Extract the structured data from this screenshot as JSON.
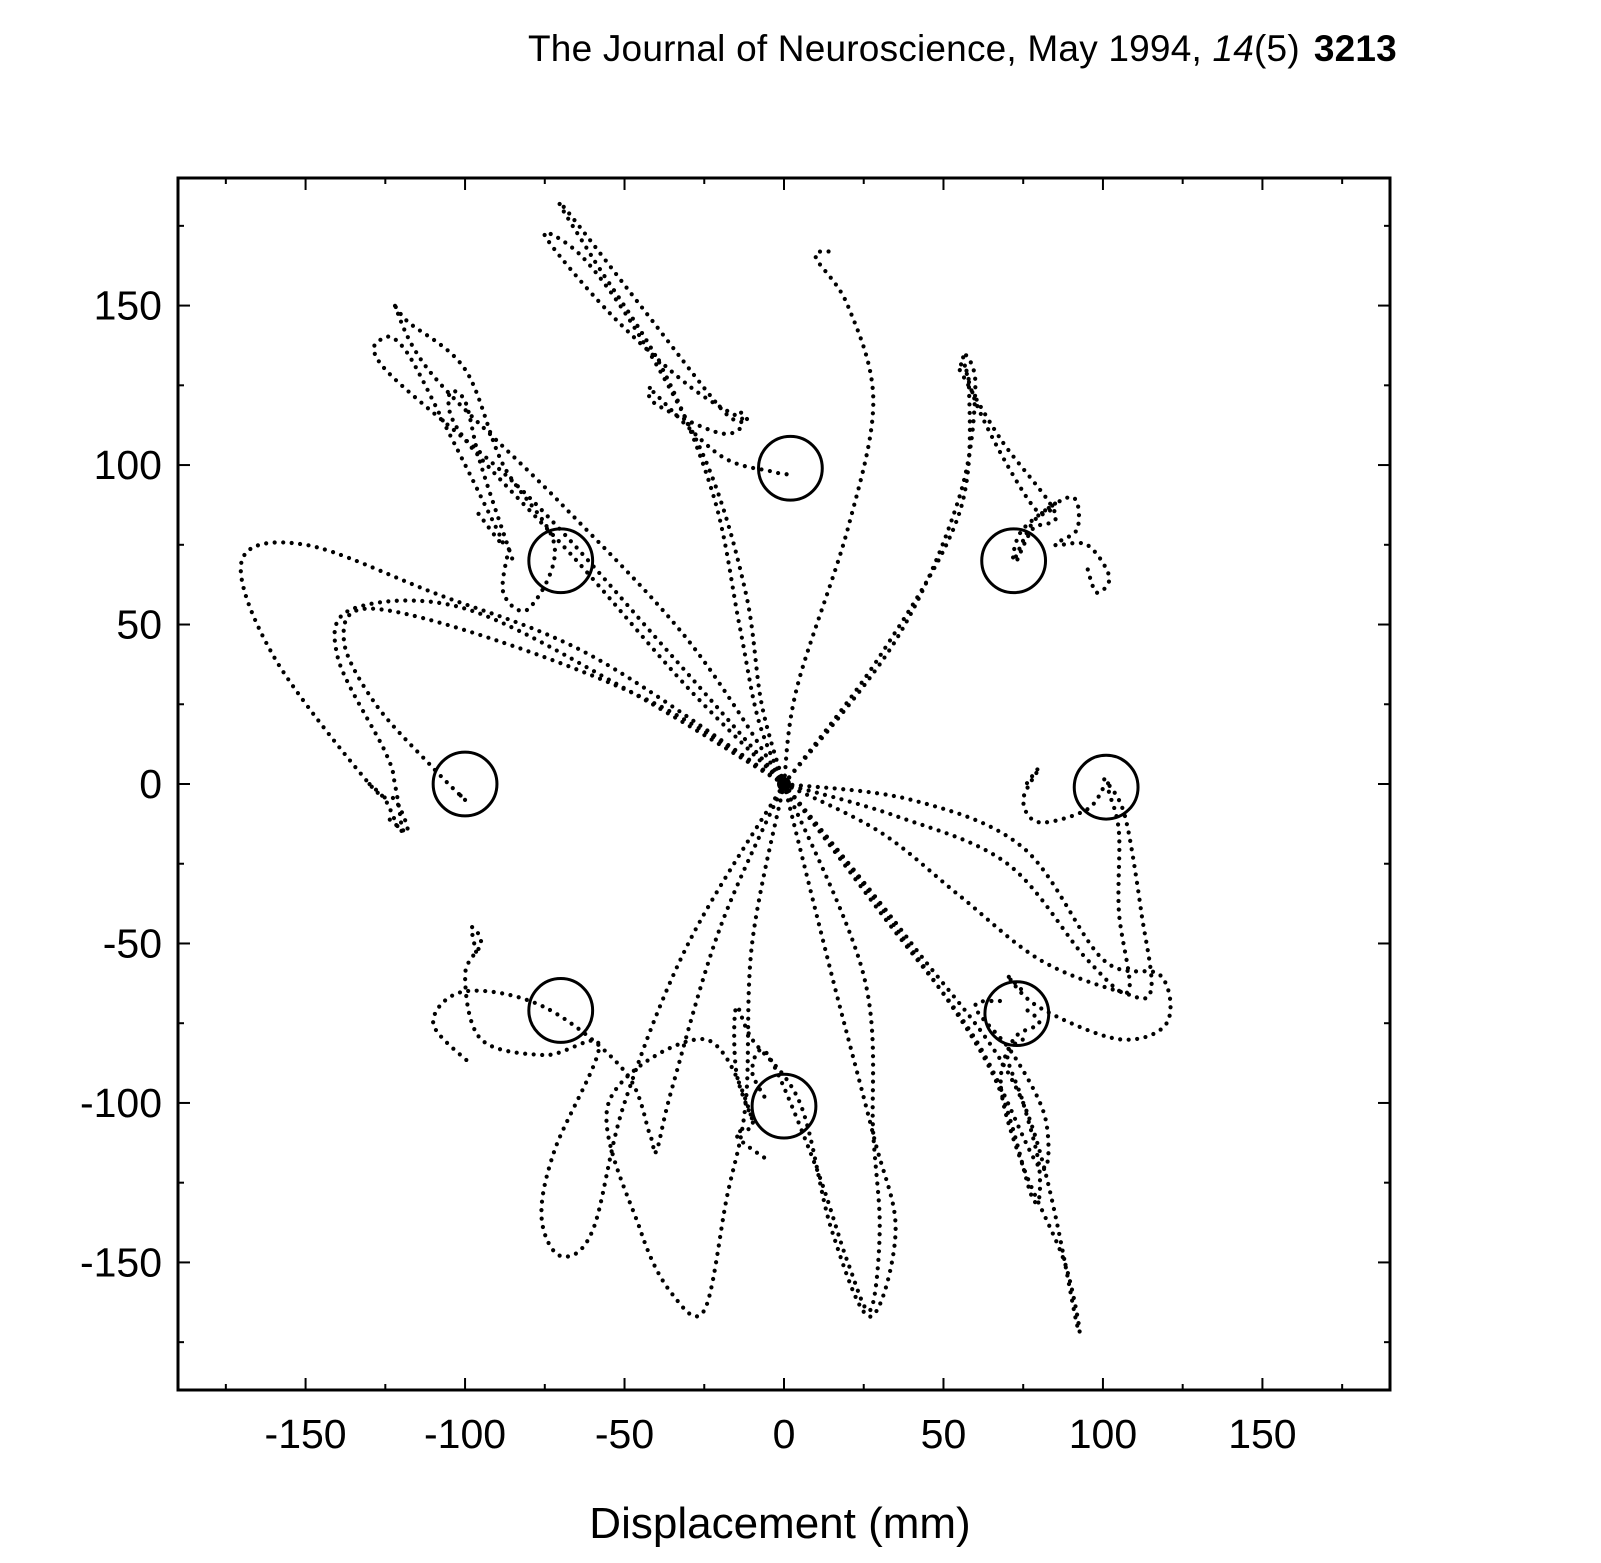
{
  "header": {
    "journal": "The Journal of Neuroscience, May 1994, ",
    "volume": "14",
    "issue": "(5)",
    "page": "3213"
  },
  "chart_data": {
    "type": "scatter",
    "title": "",
    "xlabel": "Displacement (mm)",
    "ylabel": "",
    "xlim": [
      -190,
      190
    ],
    "ylim": [
      -190,
      190
    ],
    "x_ticks": [
      -150,
      -100,
      -50,
      0,
      50,
      100,
      150
    ],
    "y_ticks": [
      150,
      100,
      50,
      0,
      -50,
      -100,
      -150
    ],
    "grid": false,
    "legend": "none",
    "origin": [
      0,
      0
    ],
    "targets": [
      {
        "x": 2,
        "y": 99,
        "r": 10
      },
      {
        "x": -70,
        "y": 70,
        "r": 10
      },
      {
        "x": 72,
        "y": 70,
        "r": 10
      },
      {
        "x": -100,
        "y": 0,
        "r": 10
      },
      {
        "x": 101,
        "y": -1,
        "r": 10
      },
      {
        "x": -70,
        "y": -71,
        "r": 10
      },
      {
        "x": 73,
        "y": -72,
        "r": 10
      },
      {
        "x": 0,
        "y": -101,
        "r": 10
      }
    ],
    "series": [
      {
        "values": [
          [
            0,
            0
          ],
          [
            -8,
            20
          ],
          [
            -14,
            50
          ],
          [
            -22,
            90
          ],
          [
            -38,
            130
          ],
          [
            -60,
            165
          ],
          [
            -70,
            182
          ],
          [
            -45,
            150
          ],
          [
            -20,
            118
          ],
          [
            -13,
            113
          ],
          [
            -20,
            110
          ],
          [
            -40,
            119
          ],
          [
            -42,
            124
          ],
          [
            -40,
            122
          ],
          [
            -20,
            103
          ],
          [
            -4,
            98
          ],
          [
            2,
            97
          ]
        ]
      },
      {
        "values": [
          [
            0,
            0
          ],
          [
            -7,
            25
          ],
          [
            -12,
            60
          ],
          [
            -24,
            100
          ],
          [
            -45,
            140
          ],
          [
            -63,
            165
          ],
          [
            -75,
            172
          ],
          [
            -55,
            148
          ],
          [
            -30,
            125
          ],
          [
            -12,
            114
          ],
          [
            -15,
            118
          ]
        ]
      },
      {
        "values": [
          [
            0,
            0
          ],
          [
            4,
            30
          ],
          [
            20,
            80
          ],
          [
            28,
            120
          ],
          [
            20,
            150
          ],
          [
            10,
            165
          ],
          [
            14,
            167
          ]
        ]
      },
      {
        "values": [
          [
            0,
            0
          ],
          [
            -30,
            45
          ],
          [
            -70,
            88
          ],
          [
            -110,
            128
          ],
          [
            -122,
            150
          ],
          [
            -118,
            145
          ],
          [
            -100,
            130
          ],
          [
            -88,
            100
          ],
          [
            -72,
            75
          ],
          [
            -80,
            55
          ],
          [
            -88,
            60
          ],
          [
            -86,
            75
          ]
        ]
      },
      {
        "values": [
          [
            0,
            0
          ],
          [
            -35,
            40
          ],
          [
            -80,
            90
          ],
          [
            -125,
            130
          ],
          [
            -125,
            140
          ],
          [
            -118,
            135
          ],
          [
            -105,
            110
          ],
          [
            -95,
            90
          ],
          [
            -88,
            75
          ],
          [
            -96,
            85
          ]
        ]
      },
      {
        "values": [
          [
            0,
            0
          ],
          [
            -30,
            30
          ],
          [
            -65,
            70
          ],
          [
            -100,
            108
          ],
          [
            -105,
            122
          ],
          [
            -100,
            120
          ],
          [
            -95,
            100
          ],
          [
            -85,
            70
          ]
        ]
      },
      {
        "values": [
          [
            0,
            0
          ],
          [
            35,
            45
          ],
          [
            55,
            90
          ],
          [
            60,
            125
          ],
          [
            56,
            135
          ],
          [
            60,
            120
          ],
          [
            70,
            100
          ],
          [
            80,
            85
          ],
          [
            85,
            88
          ],
          [
            78,
            82
          ],
          [
            72,
            70
          ],
          [
            75,
            80
          ],
          [
            90,
            90
          ],
          [
            92,
            80
          ],
          [
            85,
            75
          ],
          [
            95,
            75
          ],
          [
            102,
            65
          ],
          [
            98,
            60
          ],
          [
            95,
            68
          ]
        ]
      },
      {
        "values": [
          [
            0,
            0
          ],
          [
            30,
            40
          ],
          [
            55,
            85
          ],
          [
            58,
            125
          ],
          [
            55,
            130
          ],
          [
            68,
            108
          ],
          [
            85,
            85
          ],
          [
            78,
            80
          ],
          [
            73,
            70
          ]
        ]
      },
      {
        "values": [
          [
            0,
            0
          ],
          [
            -50,
            30
          ],
          [
            -100,
            55
          ],
          [
            -135,
            55
          ],
          [
            -140,
            40
          ],
          [
            -125,
            10
          ],
          [
            -122,
            0
          ],
          [
            -120,
            -15
          ],
          [
            -125,
            -5
          ],
          [
            -130,
            0
          ]
        ]
      },
      {
        "values": [
          [
            0,
            0
          ],
          [
            -60,
            40
          ],
          [
            -110,
            60
          ],
          [
            -150,
            75
          ],
          [
            -170,
            70
          ],
          [
            -160,
            40
          ],
          [
            -130,
            0
          ],
          [
            -122,
            -5
          ],
          [
            -118,
            -15
          ],
          [
            -125,
            -10
          ]
        ]
      },
      {
        "values": [
          [
            0,
            0
          ],
          [
            -40,
            25
          ],
          [
            -90,
            45
          ],
          [
            -130,
            55
          ],
          [
            -138,
            45
          ],
          [
            -128,
            25
          ],
          [
            -110,
            5
          ],
          [
            -100,
            -5
          ],
          [
            -103,
            -2
          ]
        ]
      },
      {
        "values": [
          [
            0,
            0
          ],
          [
            35,
            -10
          ],
          [
            70,
            -25
          ],
          [
            95,
            -55
          ],
          [
            108,
            -65
          ],
          [
            105,
            -40
          ],
          [
            105,
            -15
          ],
          [
            102,
            -3
          ],
          [
            101,
            0
          ],
          [
            95,
            -8
          ],
          [
            80,
            -12
          ],
          [
            75,
            -5
          ],
          [
            80,
            5
          ],
          [
            76,
            0
          ]
        ]
      },
      {
        "values": [
          [
            0,
            0
          ],
          [
            40,
            -5
          ],
          [
            75,
            -20
          ],
          [
            100,
            -55
          ],
          [
            118,
            -60
          ],
          [
            120,
            -75
          ],
          [
            105,
            -80
          ],
          [
            80,
            -70
          ],
          [
            70,
            -60
          ],
          [
            75,
            -65
          ]
        ]
      },
      {
        "values": [
          [
            0,
            0
          ],
          [
            30,
            -15
          ],
          [
            55,
            -35
          ],
          [
            80,
            -55
          ],
          [
            105,
            -65
          ],
          [
            115,
            -65
          ],
          [
            112,
            -40
          ],
          [
            108,
            -15
          ],
          [
            105,
            -5
          ],
          [
            100,
            2
          ]
        ]
      },
      {
        "values": [
          [
            0,
            0
          ],
          [
            -30,
            -50
          ],
          [
            -50,
            -100
          ],
          [
            -60,
            -140
          ],
          [
            -70,
            -148
          ],
          [
            -76,
            -136
          ],
          [
            -72,
            -115
          ],
          [
            -58,
            -82
          ],
          [
            -75,
            -85
          ],
          [
            -95,
            -80
          ],
          [
            -100,
            -60
          ],
          [
            -95,
            -50
          ],
          [
            -98,
            -45
          ],
          [
            -96,
            -55
          ]
        ]
      },
      {
        "values": [
          [
            0,
            0
          ],
          [
            -20,
            -45
          ],
          [
            -35,
            -95
          ],
          [
            -40,
            -115
          ],
          [
            -42,
            -110
          ],
          [
            -50,
            -90
          ],
          [
            -75,
            -70
          ],
          [
            -100,
            -65
          ],
          [
            -110,
            -75
          ],
          [
            -98,
            -88
          ]
        ]
      },
      {
        "values": [
          [
            0,
            0
          ],
          [
            -10,
            -50
          ],
          [
            -12,
            -100
          ],
          [
            -18,
            -130
          ],
          [
            -25,
            -165
          ],
          [
            -35,
            -160
          ],
          [
            -45,
            -140
          ],
          [
            -55,
            -100
          ],
          [
            -25,
            -80
          ],
          [
            -10,
            -105
          ],
          [
            -15,
            -110
          ],
          [
            -5,
            -118
          ]
        ]
      },
      {
        "values": [
          [
            0,
            0
          ],
          [
            15,
            -60
          ],
          [
            28,
            -110
          ],
          [
            35,
            -140
          ],
          [
            27,
            -167
          ],
          [
            15,
            -140
          ],
          [
            5,
            -100
          ],
          [
            -10,
            -80
          ],
          [
            -15,
            -70
          ],
          [
            -15,
            -90
          ],
          [
            -10,
            -105
          ]
        ]
      },
      {
        "values": [
          [
            0,
            0
          ],
          [
            25,
            -60
          ],
          [
            28,
            -110
          ],
          [
            30,
            -140
          ],
          [
            27,
            -165
          ],
          [
            20,
            -150
          ],
          [
            10,
            -120
          ],
          [
            -5,
            -85
          ],
          [
            -10,
            -90
          ],
          [
            -5,
            -100
          ]
        ]
      },
      {
        "values": [
          [
            0,
            0
          ],
          [
            40,
            -50
          ],
          [
            75,
            -100
          ],
          [
            92,
            -170
          ],
          [
            88,
            -150
          ],
          [
            75,
            -120
          ],
          [
            68,
            -95
          ],
          [
            72,
            -80
          ],
          [
            80,
            -75
          ],
          [
            75,
            -70
          ]
        ]
      },
      {
        "values": [
          [
            0,
            0
          ],
          [
            35,
            -45
          ],
          [
            65,
            -90
          ],
          [
            78,
            -130
          ],
          [
            80,
            -120
          ],
          [
            75,
            -100
          ],
          [
            70,
            -85
          ],
          [
            75,
            -80
          ]
        ]
      },
      {
        "values": [
          [
            0,
            0
          ],
          [
            30,
            -40
          ],
          [
            60,
            -80
          ],
          [
            80,
            -120
          ],
          [
            82,
            -105
          ],
          [
            72,
            -85
          ],
          [
            60,
            -70
          ],
          [
            68,
            -68
          ]
        ]
      }
    ]
  }
}
